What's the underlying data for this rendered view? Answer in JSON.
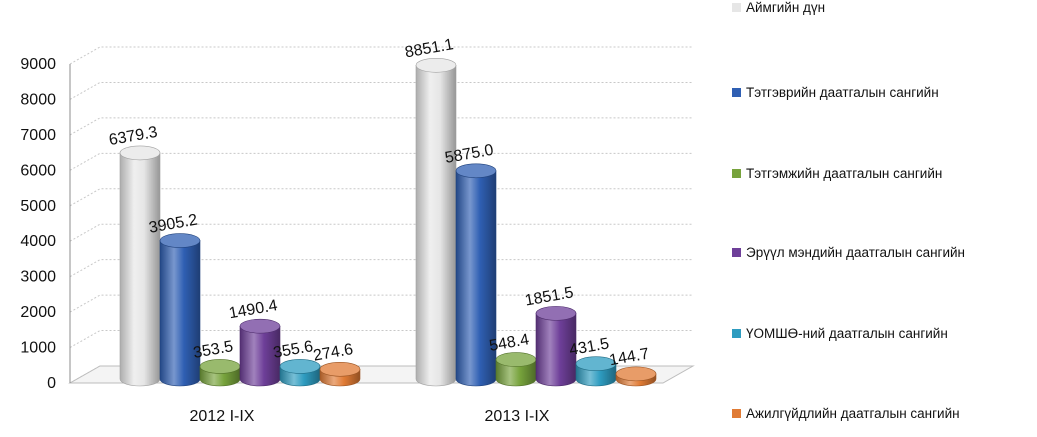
{
  "chart_data": {
    "type": "bar",
    "categories": [
      "2012 I-IX",
      "2013 I-IX"
    ],
    "series": [
      {
        "name": "Аймгийн дүн",
        "values": [
          6379.3,
          8851.1
        ],
        "color": "#e6e6e6"
      },
      {
        "name": "Тэтгэврийн даатгалын сангийн",
        "values": [
          3905.2,
          5875.0
        ],
        "color": "#2f5fb3"
      },
      {
        "name": "Тэтгэмжийн даатгалын сангийн",
        "values": [
          353.5,
          548.4
        ],
        "color": "#77a33c"
      },
      {
        "name": "Эрүүл мэндийн даатгалын сангийн",
        "values": [
          1490.4,
          1851.5
        ],
        "color": "#6e3f99"
      },
      {
        "name": "ҮОМШӨ-ний даатгалын сангийн",
        "values": [
          355.6,
          431.5
        ],
        "color": "#2e9cc0"
      },
      {
        "name": "Ажилгүйдлийн даатгалын сангийн",
        "values": [
          274.6,
          144.7
        ],
        "color": "#e07b35"
      }
    ],
    "data_labels": [
      [
        "6379.3",
        "8851.1"
      ],
      [
        "3905.2",
        "5875.0"
      ],
      [
        "353.5",
        "548.4"
      ],
      [
        "1490.4",
        "1851.5"
      ],
      [
        "355.6",
        "431.5"
      ],
      [
        "274.6",
        "144.7"
      ]
    ],
    "y_ticks": [
      "0",
      "1000",
      "2000",
      "3000",
      "4000",
      "5000",
      "6000",
      "7000",
      "8000",
      "9000"
    ],
    "ylim": [
      0,
      9000
    ],
    "grid": true,
    "legend_position": "right",
    "style": "3d-cylinder"
  }
}
